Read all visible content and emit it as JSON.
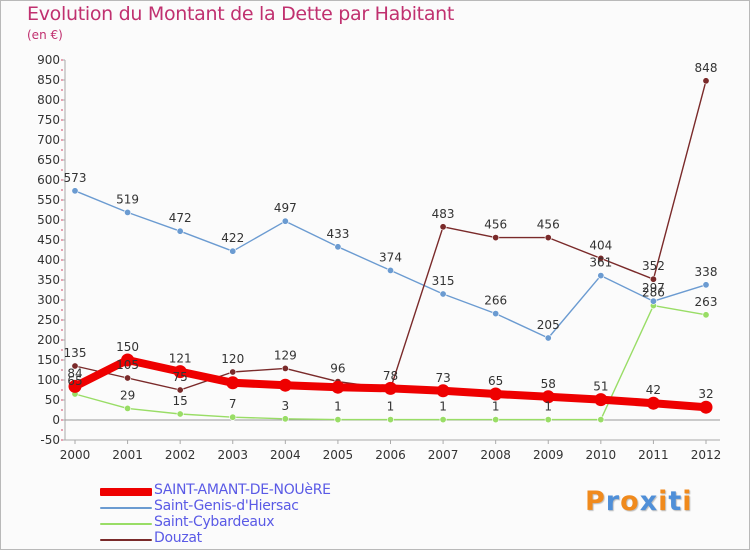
{
  "header": {
    "title": "Evolution du Montant de la Dette par Habitant",
    "unit": "(en €)"
  },
  "chart_data": {
    "type": "line",
    "title": "Evolution du Montant de la Dette par Habitant",
    "subtitle": "(en €)",
    "xlabel": "",
    "ylabel": "",
    "x": [
      "2000",
      "2001",
      "2002",
      "2003",
      "2004",
      "2005",
      "2006",
      "2007",
      "2008",
      "2009",
      "2010",
      "2011",
      "2012"
    ],
    "ylim": [
      -50,
      900
    ],
    "y_ticks": [
      -50,
      0,
      50,
      100,
      150,
      200,
      250,
      300,
      350,
      400,
      450,
      500,
      550,
      600,
      650,
      700,
      750,
      800,
      850,
      900
    ],
    "grid": false,
    "legend_position": "bottom-left",
    "series": [
      {
        "name": "SAINT-AMANT-DE-NOUèRE",
        "color": "#ee0000",
        "values": [
          84,
          150,
          121,
          93,
          87,
          82,
          79,
          73,
          65,
          58,
          51,
          42,
          32
        ],
        "labels": [
          "84",
          "150",
          "121",
          "",
          "",
          "",
          "",
          "73",
          "65",
          "58",
          "51",
          "42",
          "32"
        ]
      },
      {
        "name": "Saint-Genis-d'Hiersac",
        "color": "#6b9bd1",
        "values": [
          573,
          519,
          472,
          422,
          497,
          433,
          374,
          315,
          266,
          205,
          361,
          297,
          338
        ],
        "labels": [
          "573",
          "519",
          "472",
          "422",
          "497",
          "433",
          "374",
          "315",
          "266",
          "205",
          "361",
          "297",
          "338"
        ]
      },
      {
        "name": "Saint-Cybardeaux",
        "color": "#99dd66",
        "values": [
          65,
          29,
          15,
          7,
          3,
          1,
          1,
          1,
          1,
          1,
          1,
          286,
          263
        ],
        "labels": [
          "65",
          "29",
          "15",
          "7",
          "3",
          "1",
          "1",
          "1",
          "1",
          "1",
          "",
          "286",
          "263"
        ]
      },
      {
        "name": "Douzat",
        "color": "#7a2a2a",
        "values": [
          135,
          105,
          75,
          120,
          129,
          96,
          78,
          483,
          456,
          456,
          404,
          352,
          848
        ],
        "labels": [
          "135",
          "105",
          "75",
          "120",
          "129",
          "96",
          "78",
          "483",
          "456",
          "456",
          "404",
          "352",
          "848"
        ]
      }
    ]
  },
  "legend": {
    "items": [
      {
        "label": "SAINT-AMANT-DE-NOUèRE"
      },
      {
        "label": "Saint-Genis-d'Hiersac"
      },
      {
        "label": "Saint-Cybardeaux"
      },
      {
        "label": "Douzat"
      }
    ]
  },
  "logo": {
    "letters": [
      "P",
      "r",
      "o",
      "x",
      "i",
      "t",
      "i"
    ],
    "colors": [
      "#f08a1c",
      "#4f8fd8",
      "#f08a1c",
      "#4f8fd8",
      "#f08a1c",
      "#4f8fd8",
      "#f08a1c"
    ]
  }
}
